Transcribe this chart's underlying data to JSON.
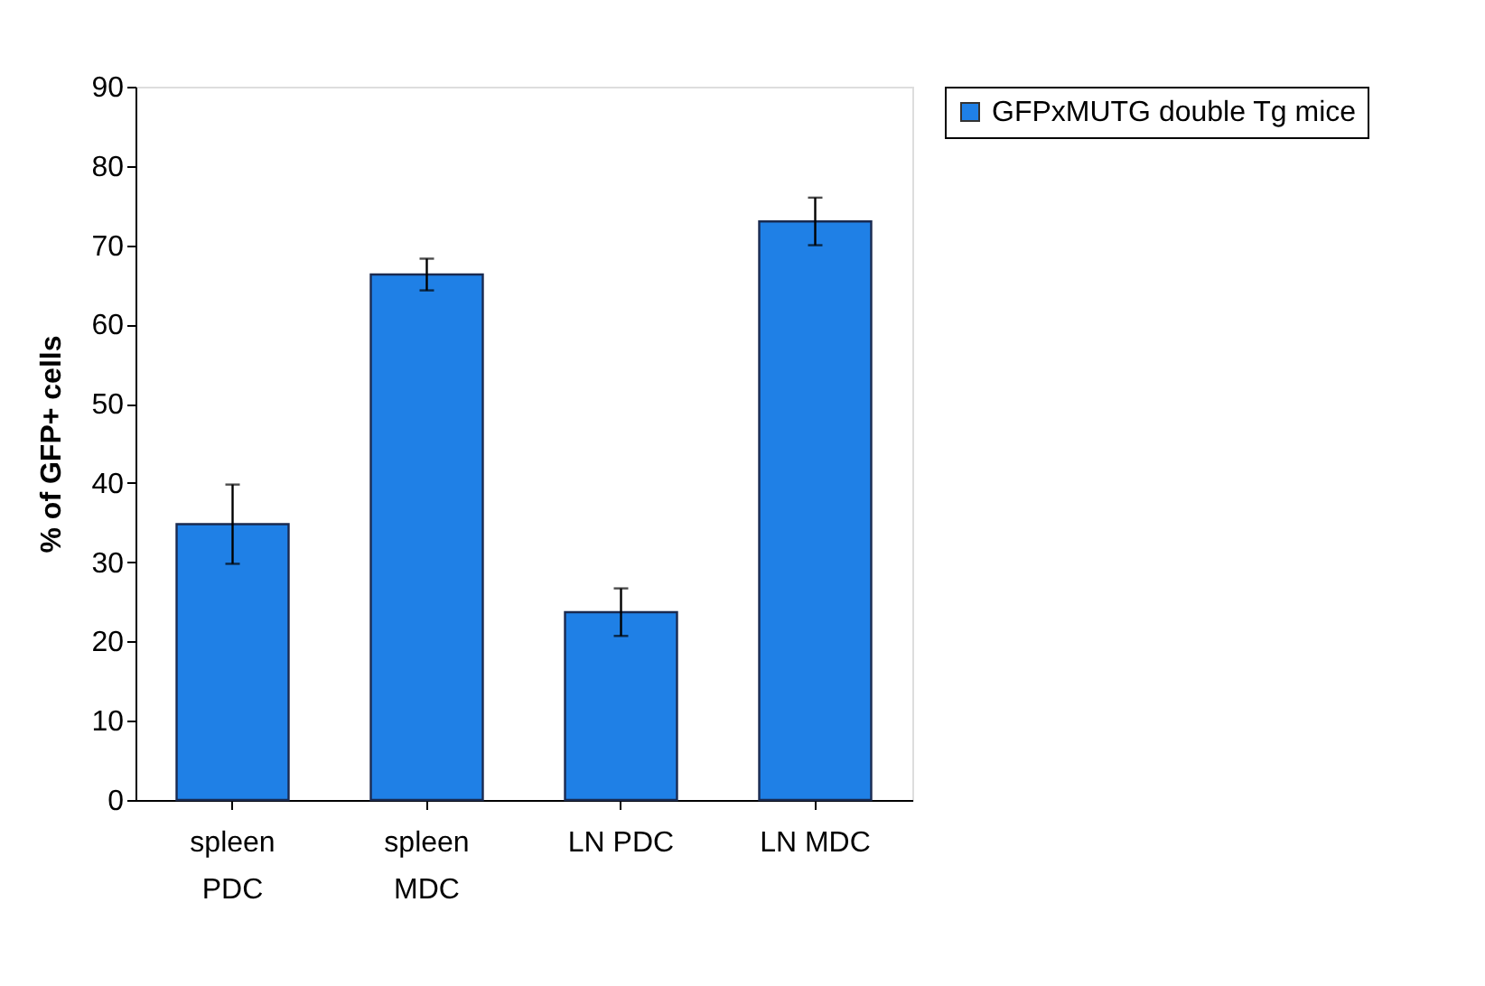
{
  "chart_data": {
    "type": "bar",
    "ylabel": "% of GFP+ cells",
    "categories": [
      "spleen\nPDC",
      "spleen\nMDC",
      "LN PDC",
      "LN MDC"
    ],
    "series": [
      {
        "name": "GFPxMUTG double Tg mice",
        "color": "#1f80e6",
        "values": [
          34.8,
          66.3,
          23.7,
          73.0
        ],
        "errors": [
          5,
          2,
          3,
          3
        ]
      }
    ],
    "ylim": [
      0,
      90
    ],
    "yticks": [
      0,
      10,
      20,
      30,
      40,
      50,
      60,
      70,
      80,
      90
    ],
    "grid": false,
    "legend": "right"
  }
}
